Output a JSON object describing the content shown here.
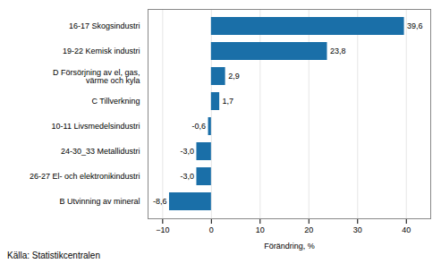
{
  "chart_data": {
    "type": "bar",
    "orientation": "horizontal",
    "categories": [
      "B Utvinning av mineral",
      "26-27 El- och elektronikindustri",
      "24-30_33 Metallidustri",
      "10-11 Livsmedelsindustri",
      "C Tillverkning",
      "D Försörjning av el, gas,\nvärme och kyla",
      "19-22 Kemisk industri",
      "16-17 Skogsindustri"
    ],
    "values": [
      -8.6,
      -3.0,
      -3.0,
      -0.6,
      1.7,
      2.9,
      23.8,
      39.6
    ],
    "value_labels": [
      "-8,6",
      "-3,0",
      "-3,0",
      "-0,6",
      "1,7",
      "2,9",
      "23,8",
      "39,6"
    ],
    "data_labels": true,
    "color": "#1a6fa8",
    "xlabel": "Förändring, %",
    "xlim": [
      -13,
      45
    ],
    "xticks": [
      -10,
      0,
      10,
      20,
      30,
      40
    ],
    "grid": true,
    "annotations": [
      "Källa: Statistikcentralen"
    ]
  }
}
